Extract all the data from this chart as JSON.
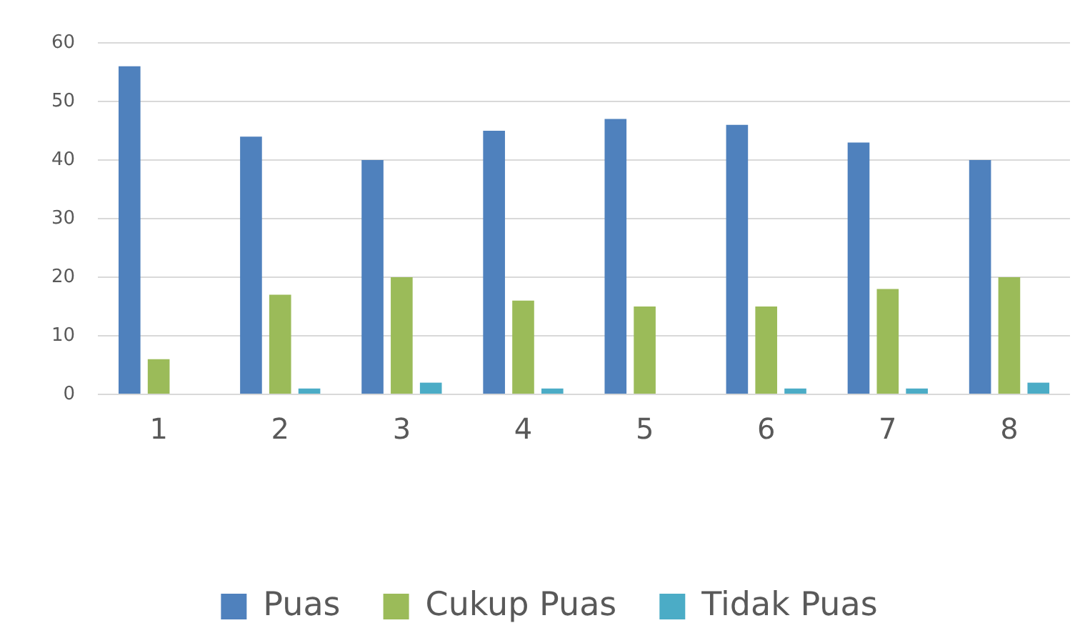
{
  "chart_data": {
    "type": "bar",
    "categories": [
      "1",
      "2",
      "3",
      "4",
      "5",
      "6",
      "7",
      "8"
    ],
    "series": [
      {
        "name": "Puas",
        "color": "#4f81bd",
        "values": [
          56,
          44,
          40,
          45,
          47,
          46,
          43,
          40
        ]
      },
      {
        "name": "Cukup Puas",
        "color": "#9bbb59",
        "values": [
          6,
          17,
          20,
          16,
          15,
          15,
          18,
          20
        ]
      },
      {
        "name": "Tidak Puas",
        "color": "#4bacc6",
        "values": [
          0,
          1,
          2,
          1,
          0,
          1,
          1,
          2
        ]
      }
    ],
    "ylim": [
      0,
      60
    ],
    "yticks": [
      0,
      10,
      20,
      30,
      40,
      50,
      60
    ],
    "grid": "y",
    "legend": "bottom"
  }
}
